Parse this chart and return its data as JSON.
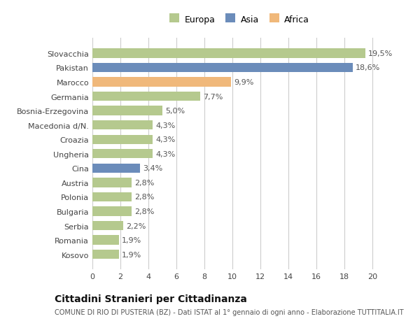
{
  "categories": [
    "Slovacchia",
    "Pakistan",
    "Marocco",
    "Germania",
    "Bosnia-Erzegovina",
    "Macedonia d/N.",
    "Croazia",
    "Ungheria",
    "Cina",
    "Austria",
    "Polonia",
    "Bulgaria",
    "Serbia",
    "Romania",
    "Kosovo"
  ],
  "values": [
    19.5,
    18.6,
    9.9,
    7.7,
    5.0,
    4.3,
    4.3,
    4.3,
    3.4,
    2.8,
    2.8,
    2.8,
    2.2,
    1.9,
    1.9
  ],
  "colors": [
    "#b5c98e",
    "#6b8cba",
    "#f0b87a",
    "#b5c98e",
    "#b5c98e",
    "#b5c98e",
    "#b5c98e",
    "#b5c98e",
    "#6b8cba",
    "#b5c98e",
    "#b5c98e",
    "#b5c98e",
    "#b5c98e",
    "#b5c98e",
    "#b5c98e"
  ],
  "labels": [
    "19,5%",
    "18,6%",
    "9,9%",
    "7,7%",
    "5,0%",
    "4,3%",
    "4,3%",
    "4,3%",
    "3,4%",
    "2,8%",
    "2,8%",
    "2,8%",
    "2,2%",
    "1,9%",
    "1,9%"
  ],
  "legend": [
    {
      "label": "Europa",
      "color": "#b5c98e"
    },
    {
      "label": "Asia",
      "color": "#6b8cba"
    },
    {
      "label": "Africa",
      "color": "#f0b87a"
    }
  ],
  "xlim": [
    0,
    21
  ],
  "xticks": [
    0,
    2,
    4,
    6,
    8,
    10,
    12,
    14,
    16,
    18,
    20
  ],
  "title": "Cittadini Stranieri per Cittadinanza",
  "subtitle": "COMUNE DI RIO DI PUSTERIA (BZ) - Dati ISTAT al 1° gennaio di ogni anno - Elaborazione TUTTITALIA.IT",
  "bg_color": "#ffffff",
  "bar_height": 0.65,
  "label_fontsize": 8,
  "ytick_fontsize": 8,
  "xtick_fontsize": 8,
  "title_fontsize": 10,
  "subtitle_fontsize": 7
}
